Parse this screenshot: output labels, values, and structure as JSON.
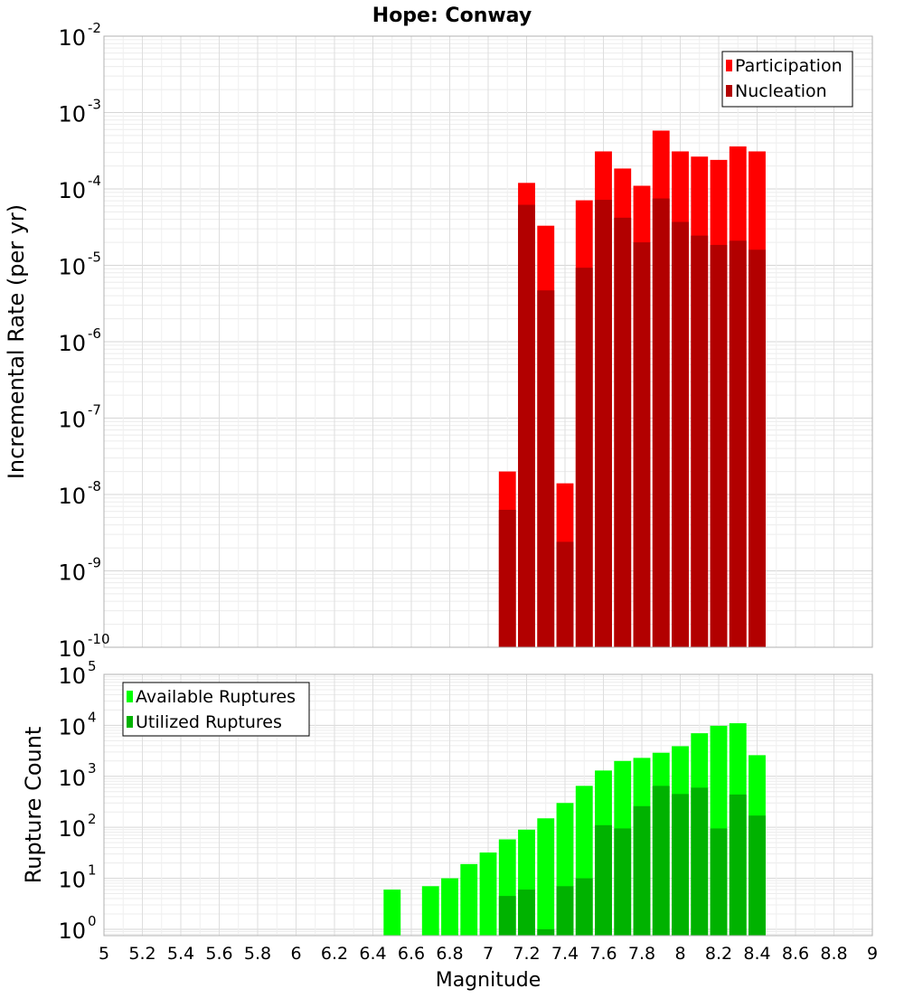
{
  "chart_data": [
    {
      "type": "bar",
      "title": "Hope: Conway",
      "xlabel": "",
      "ylabel": "Incremental Rate (per yr)",
      "yscale": "log",
      "ylim": [
        1e-10,
        0.01
      ],
      "xlim": [
        5,
        9
      ],
      "grid": true,
      "legend_position": "top-right",
      "bar_width": 0.1,
      "y_tick_exponents": [
        "-10",
        "-9",
        "-8",
        "-7",
        "-6",
        "-5",
        "-4",
        "-3",
        "-2"
      ],
      "series": [
        {
          "name": "Participation",
          "color": "#ff0000",
          "x": [
            7.1,
            7.2,
            7.3,
            7.4,
            7.5,
            7.6,
            7.7,
            7.8,
            7.9,
            8.0,
            8.1,
            8.2,
            8.3,
            8.4
          ],
          "values": [
            2e-08,
            0.00012,
            3.3e-05,
            1.4e-08,
            7.1e-05,
            0.00031,
            0.000185,
            0.00011,
            0.00058,
            0.00031,
            0.000265,
            0.00024,
            0.00036,
            0.00031
          ]
        },
        {
          "name": "Nucleation",
          "color": "#b20000",
          "x": [
            7.1,
            7.2,
            7.3,
            7.4,
            7.5,
            7.6,
            7.7,
            7.8,
            7.9,
            8.0,
            8.1,
            8.2,
            8.3,
            8.4
          ],
          "values": [
            6.3e-09,
            6.2e-05,
            4.7e-06,
            2.4e-09,
            9.3e-06,
            7.2e-05,
            4.2e-05,
            2e-05,
            7.5e-05,
            3.7e-05,
            2.45e-05,
            1.85e-05,
            2.1e-05,
            1.6e-05
          ]
        }
      ]
    },
    {
      "type": "bar",
      "title": "",
      "xlabel": "Magnitude",
      "ylabel": "Rupture Count",
      "yscale": "log",
      "ylim": [
        0.75,
        100000
      ],
      "xlim": [
        5,
        9
      ],
      "grid": true,
      "legend_position": "top-left",
      "bar_width": 0.1,
      "x_ticks": [
        "5",
        "5.2",
        "5.4",
        "5.6",
        "5.8",
        "6",
        "6.2",
        "6.4",
        "6.6",
        "6.8",
        "7",
        "7.2",
        "7.4",
        "7.6",
        "7.8",
        "8",
        "8.2",
        "8.4",
        "8.6",
        "8.8",
        "9"
      ],
      "y_tick_exponents": [
        "0",
        "1",
        "2",
        "3",
        "4",
        "5"
      ],
      "series": [
        {
          "name": "Available Ruptures",
          "color": "#00ff00",
          "x": [
            6.5,
            6.7,
            6.8,
            6.9,
            7.0,
            7.1,
            7.2,
            7.3,
            7.4,
            7.5,
            7.6,
            7.7,
            7.8,
            7.9,
            8.0,
            8.1,
            8.2,
            8.3,
            8.4
          ],
          "values": [
            6,
            7,
            10,
            19,
            32,
            58,
            90,
            150,
            300,
            650,
            1300,
            2000,
            2300,
            2900,
            3900,
            7000,
            9800,
            11000,
            2600
          ]
        },
        {
          "name": "Utilized Ruptures",
          "color": "#00b200",
          "x": [
            7.1,
            7.2,
            7.3,
            7.4,
            7.5,
            7.6,
            7.7,
            7.8,
            7.9,
            8.0,
            8.1,
            8.2,
            8.3,
            8.4
          ],
          "values": [
            4.5,
            6,
            1,
            7,
            10,
            110,
            95,
            260,
            650,
            450,
            600,
            95,
            440,
            170
          ]
        }
      ]
    }
  ]
}
